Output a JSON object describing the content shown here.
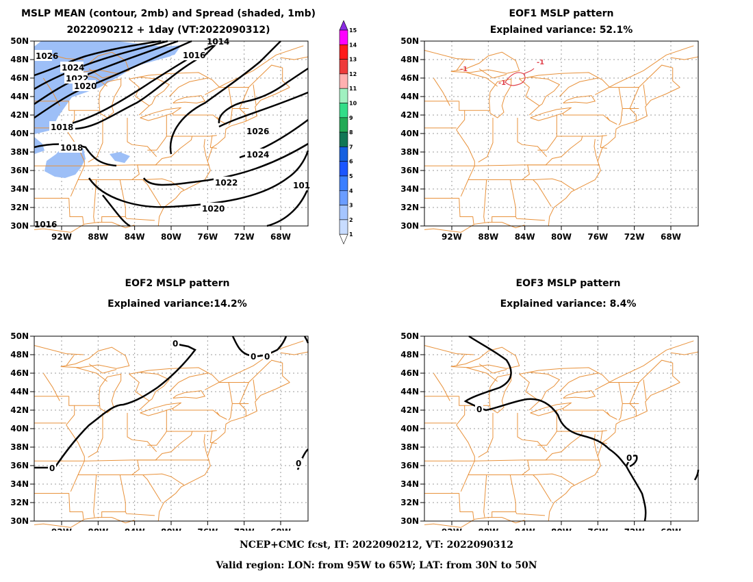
{
  "panels": {
    "mean": {
      "title_line1": "MSLP MEAN (contour, 2mb) and Spread (shaded, 1mb)",
      "title_line2": "2022090212 + 1day (VT:2022090312)",
      "contour_labels": [
        "1026",
        "1024",
        "1022",
        "1020",
        "1018",
        "1018",
        "1016",
        "1014",
        "1026",
        "1024",
        "1022",
        "1020",
        "101",
        "1016"
      ]
    },
    "eof1": {
      "title_line1": "EOF1 MSLP pattern",
      "title_line2": "Explained variance: 52.1%",
      "contour_labels": [
        "-1",
        "-1",
        "-1"
      ]
    },
    "eof2": {
      "title_line1": "EOF2 MSLP pattern",
      "title_line2": "Explained variance:14.2%",
      "contour_labels": [
        "0",
        "0",
        "0",
        "0",
        "0"
      ]
    },
    "eof3": {
      "title_line1": "EOF3 MSLP pattern",
      "title_line2": "Explained variance: 8.4%",
      "contour_labels": [
        "0",
        "0"
      ]
    }
  },
  "axes": {
    "lat_labels": [
      "50N",
      "48N",
      "46N",
      "44N",
      "42N",
      "40N",
      "38N",
      "36N",
      "34N",
      "32N",
      "30N"
    ],
    "lon_labels": [
      "92W",
      "88W",
      "84W",
      "80W",
      "76W",
      "72W",
      "68W"
    ],
    "lat_range": [
      30,
      50
    ],
    "lon_range": [
      -95,
      -65
    ],
    "grid": "dotted"
  },
  "colorbar": {
    "labels": [
      "15",
      "14",
      "13",
      "12",
      "11",
      "10",
      "9",
      "8",
      "7",
      "6",
      "5",
      "4",
      "3",
      "2",
      "1"
    ],
    "colors": [
      "#8a2be2",
      "#ff00ff",
      "#ff1a1a",
      "#ee3b3b",
      "#ffb0b0",
      "#a0f0c0",
      "#33dd88",
      "#22aa55",
      "#117755",
      "#1560e0",
      "#1a55ff",
      "#3a7fff",
      "#6a9dff",
      "#a5c5ff",
      "#c8dcff"
    ]
  },
  "style": {
    "map_color": "#e8913a",
    "spread_fill": "#9dbff7",
    "eof_negative": "#e0404a"
  },
  "footer": {
    "line1": "NCEP+CMC fcst, IT: 2022090212, VT: 2022090312",
    "line2": "Valid region: LON: from 95W to 65W; LAT: from 30N to 50N"
  }
}
